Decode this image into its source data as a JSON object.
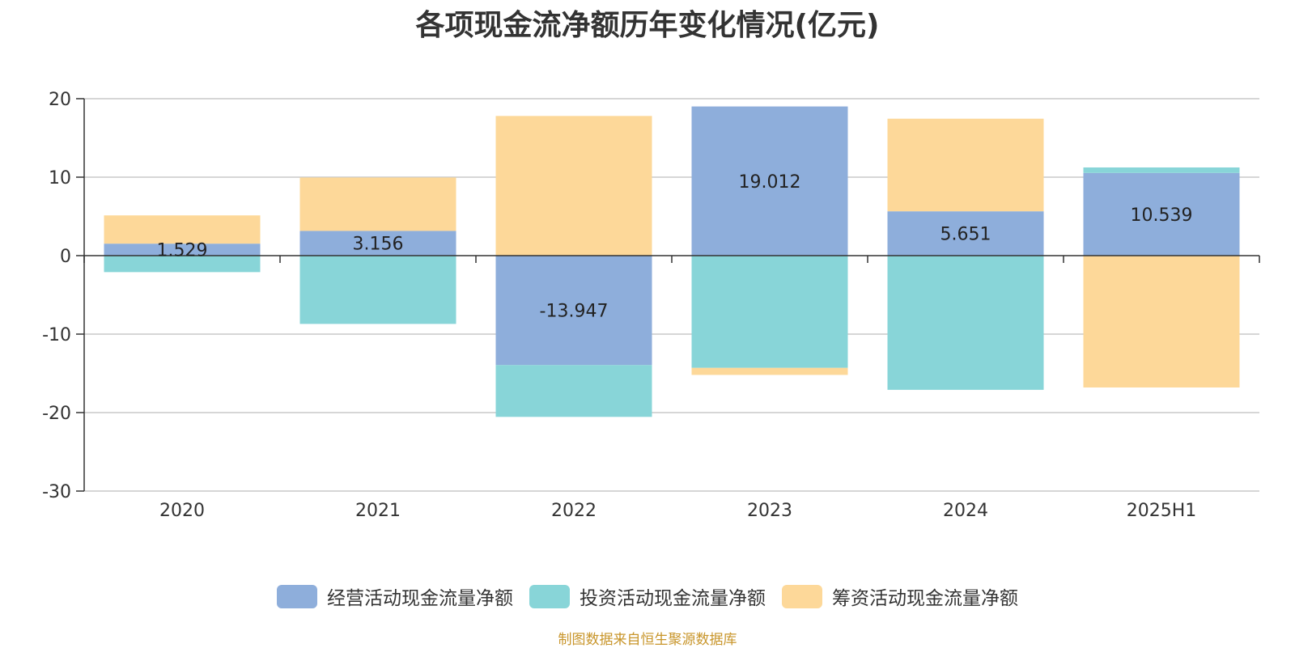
{
  "chart_data": {
    "type": "bar",
    "stacked": true,
    "title": "各项现金流净额历年变化情况(亿元)",
    "xlabel": "",
    "ylabel": "",
    "categories": [
      "2020",
      "2021",
      "2022",
      "2023",
      "2024",
      "2025H1"
    ],
    "ylim": [
      -30,
      20
    ],
    "yticks": [
      20,
      10,
      0,
      -10,
      -20,
      -30
    ],
    "grid": true,
    "legend_position": "bottom",
    "series": [
      {
        "name": "经营活动现金流量净额",
        "color": "#8eaedb",
        "values": [
          1.529,
          3.156,
          -13.947,
          19.012,
          5.651,
          10.539
        ],
        "labels": [
          "1.529",
          "3.156",
          "-13.947",
          "19.012",
          "5.651",
          "10.539"
        ]
      },
      {
        "name": "投资活动现金流量净额",
        "color": "#88d5d8",
        "values": [
          -2.1,
          -8.7,
          -6.6,
          -14.3,
          -17.1,
          0.7
        ]
      },
      {
        "name": "筹资活动现金流量净额",
        "color": "#fdd899",
        "values": [
          3.6,
          6.8,
          17.8,
          -0.9,
          11.8,
          -16.8
        ]
      }
    ]
  },
  "source_note": "制图数据来自恒生聚源数据库"
}
